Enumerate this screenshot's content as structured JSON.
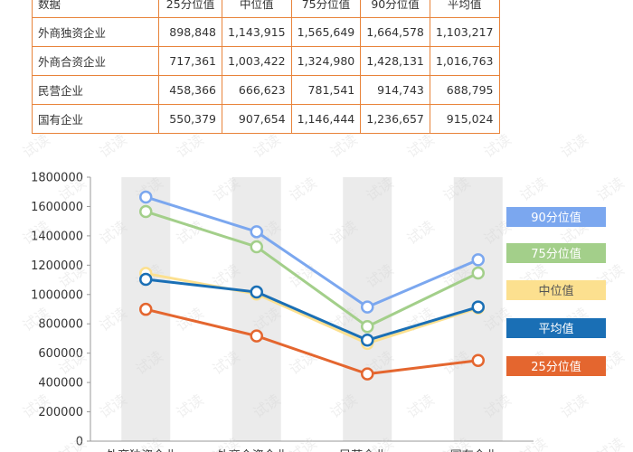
{
  "table": {
    "header": [
      "数据",
      "25分位值",
      "中位值",
      "75分位值",
      "90分位值",
      "平均值"
    ],
    "rows": [
      [
        "外商独资企业",
        "898,848",
        "1,143,915",
        "1,565,649",
        "1,664,578",
        "1,103,217"
      ],
      [
        "外商合资企业",
        "717,361",
        "1,003,422",
        "1,324,980",
        "1,428,131",
        "1,016,763"
      ],
      [
        "民营企业",
        "458,366",
        "666,623",
        "781,541",
        "914,743",
        "688,795"
      ],
      [
        "国有企业",
        "550,379",
        "907,654",
        "1,146,444",
        "1,236,657",
        "915,024"
      ]
    ]
  },
  "chart_data": {
    "type": "line",
    "categories": [
      "外商独资企业",
      "外商合资企业",
      "民营企业",
      "国有企业"
    ],
    "yticks": [
      "0",
      "200000",
      "400000",
      "600000",
      "800000",
      "1000000",
      "1200000",
      "1400000",
      "1600000",
      "1800000"
    ],
    "ylim": [
      0,
      1800000
    ],
    "grid": false,
    "legend_position": "right",
    "band_color": "#ebebeb",
    "series": [
      {
        "name": "90分位值",
        "color": "#7ba7ef",
        "values": [
          1664578,
          1428131,
          914743,
          1236657
        ]
      },
      {
        "name": "75分位值",
        "color": "#a3cf8a",
        "values": [
          1565649,
          1324980,
          781541,
          1146444
        ]
      },
      {
        "name": "中位值",
        "color": "#fce08f",
        "values": [
          1143915,
          1003422,
          666623,
          907654
        ]
      },
      {
        "name": "平均值",
        "color": "#1a6fb5",
        "values": [
          1103217,
          1016763,
          688795,
          915024
        ]
      },
      {
        "name": "25分位值",
        "color": "#e4662f",
        "values": [
          898848,
          717361,
          458366,
          550379
        ]
      }
    ]
  },
  "watermark": "试读"
}
